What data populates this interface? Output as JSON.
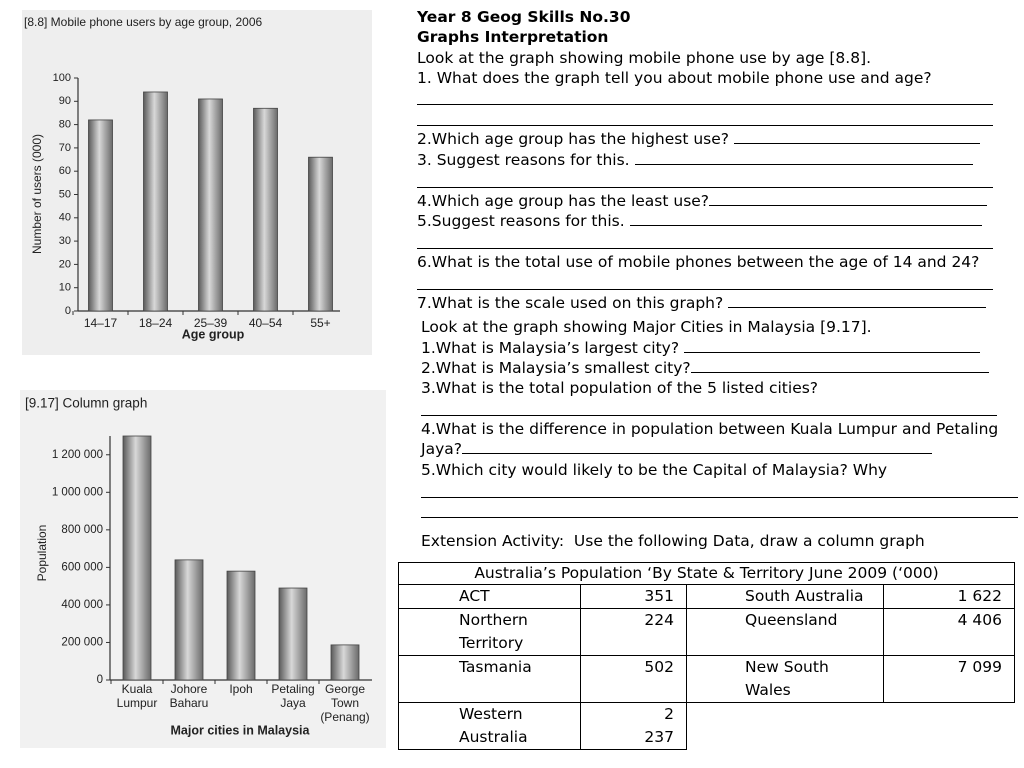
{
  "chart_data": [
    {
      "type": "bar",
      "title": "[8.8] Mobile phone users by age group, 2006",
      "x_label": "Age group",
      "y_label": "Number of users (000)",
      "categories": [
        "14–17",
        "18–24",
        "25–39",
        "40–54",
        "55+"
      ],
      "values": [
        82,
        94,
        91,
        87,
        66
      ],
      "ylim": [
        0,
        100
      ],
      "yticks": [
        0,
        10,
        20,
        30,
        40,
        50,
        60,
        70,
        80,
        90,
        100
      ]
    },
    {
      "type": "bar",
      "title": "[9.17] Column graph",
      "x_label": "Major cities in Malaysia",
      "y_label": "Population",
      "categories": [
        "Kuala Lumpur",
        "Johore Baharu",
        "Ipoh",
        "Petaling Jaya",
        "George Town (Penang)"
      ],
      "values": [
        1300000,
        640000,
        580000,
        490000,
        187000
      ],
      "ylim": [
        0,
        1300000
      ],
      "yticks": [
        0,
        {
          "value": 200000,
          "label": "200 000"
        },
        {
          "value": 400000,
          "label": "400 000"
        },
        {
          "value": 600000,
          "label": "600 000"
        },
        {
          "value": 800000,
          "label": "800 000"
        },
        {
          "value": 1000000,
          "label": "1 000 000"
        },
        {
          "value": 1200000,
          "label": "1 200 000"
        }
      ]
    }
  ],
  "header": {
    "title": "Year 8 Geog Skills No.30",
    "subtitle": "Graphs Interpretation"
  },
  "section1": {
    "intro": "Look at the graph showing mobile phone use by age [8.8].",
    "questions": [
      "1. What does the graph tell you about mobile phone use and age?",
      "2.Which age group has the highest use?",
      "3. Suggest reasons for this.",
      "4.Which age group has the least use?",
      "5.Suggest reasons for this.",
      "6.What is the total use of mobile phones between the age of 14 and 24?",
      "7.What is the scale used on this graph?"
    ]
  },
  "section2": {
    "intro": "Look at the graph showing Major Cities in Malaysia [9.17].",
    "questions": [
      "1.What is Malaysia’s largest city?",
      "2.What is Malaysia’s smallest city?",
      "3.What is the total population of the 5 listed cities?",
      "4.What is the difference in population between Kuala Lumpur and Petaling Jaya?",
      "5.Which city would likely to be the Capital of Malaysia? Why"
    ]
  },
  "extension": "Extension Activity:  Use the following Data, draw a column graph",
  "table": {
    "title": "Australia’s Population ‘By State & Territory June 2009 (‘000)",
    "rows": [
      [
        "ACT",
        "351",
        "South Australia",
        "1 622"
      ],
      [
        "Northern Territory",
        "224",
        "Queensland",
        "4 406"
      ],
      [
        "Tasmania",
        "502",
        "New South Wales",
        "7 099"
      ],
      [
        "Western Australia",
        "2 237"
      ]
    ]
  }
}
